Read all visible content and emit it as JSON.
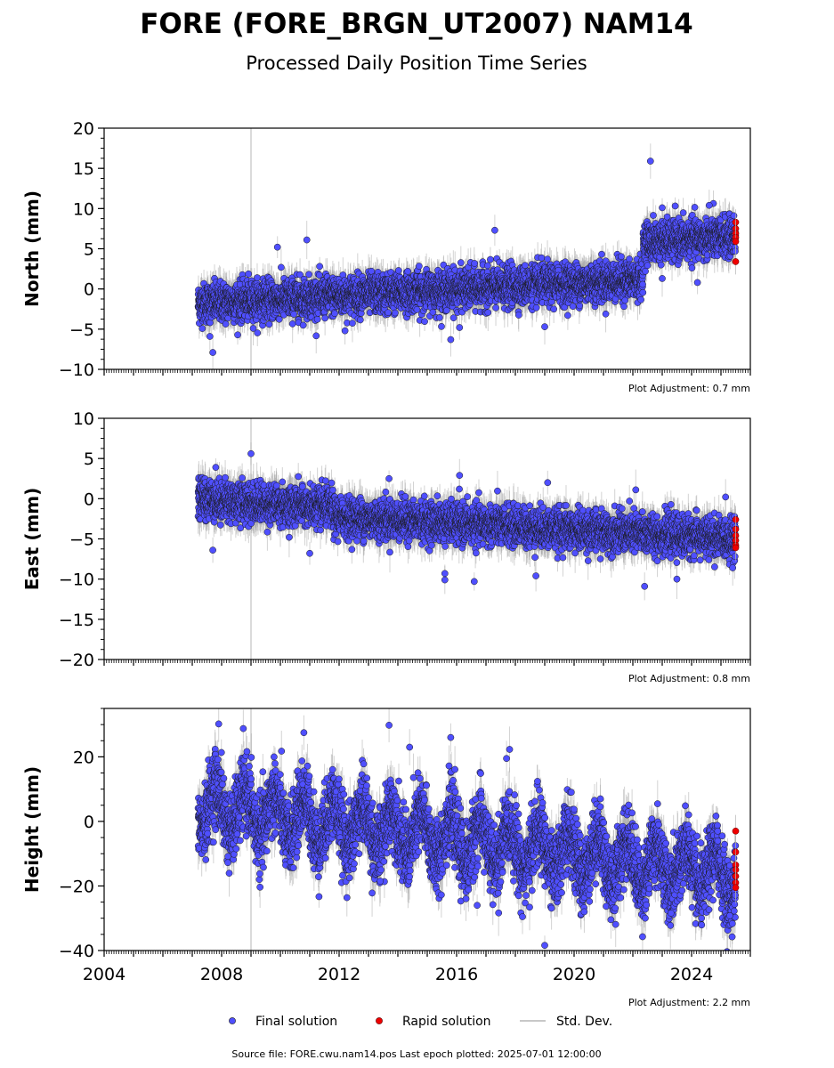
{
  "title": "FORE (FORE_BRGN_UT2007) NAM14",
  "subtitle": "Processed Daily Position Time Series",
  "legend": {
    "final": "Final solution",
    "rapid": "Rapid solution",
    "std": "Std. Dev."
  },
  "source": "Source file: FORE.cwu.nam14.pos  Last epoch plotted: 2025-07-01 12:00:00",
  "colors": {
    "final": "#4f4fff",
    "rapid": "#ee0000",
    "std": "#c8c8c8",
    "marker_edge": "#1a1a1a"
  },
  "chart_data": [
    {
      "type": "scatter",
      "ylabel": "North (mm)",
      "ylim": [
        -10,
        20
      ],
      "yticks": [
        "20",
        "15",
        "10",
        "5",
        "0",
        "−5",
        "−10"
      ],
      "xlim": [
        2004,
        2026
      ],
      "adjustment": "Plot Adjustment: 0.7 mm",
      "trend_segments": [
        {
          "x": [
            2007.2,
            2022.35
          ],
          "y": [
            -1.8,
            1.2
          ]
        },
        {
          "x": [
            2022.35,
            2025.5
          ],
          "y": [
            5.8,
            6.5
          ]
        }
      ],
      "final_outliers": [
        [
          2022.6,
          15.9
        ],
        [
          2017.3,
          7.3
        ],
        [
          2010.9,
          6.1
        ],
        [
          2009.9,
          5.2
        ],
        [
          2007.7,
          -7.9
        ],
        [
          2007.6,
          -5.9
        ],
        [
          2012.2,
          -5.2
        ],
        [
          2015.8,
          -6.3
        ],
        [
          2016.1,
          -4.8
        ],
        [
          2019.0,
          -4.7
        ],
        [
          2024.6,
          10.4
        ],
        [
          2023.0,
          10.1
        ],
        [
          2024.2,
          0.8
        ],
        [
          2023.0,
          1.3
        ]
      ],
      "rapid_points": [
        [
          2025.5,
          8.3
        ],
        [
          2025.5,
          7.5
        ],
        [
          2025.5,
          6.9
        ],
        [
          2025.5,
          6.4
        ],
        [
          2025.5,
          5.9
        ],
        [
          2025.5,
          3.4
        ]
      ]
    },
    {
      "type": "scatter",
      "ylabel": "East (mm)",
      "ylim": [
        -20,
        10
      ],
      "yticks": [
        "10",
        "5",
        "0",
        "−5",
        "−10",
        "−15",
        "−20"
      ],
      "xlim": [
        2004,
        2026
      ],
      "adjustment": "Plot Adjustment: 0.8 mm",
      "trend_segments": [
        {
          "x": [
            2007.2,
            2011.8
          ],
          "y": [
            0.0,
            -1.2
          ]
        },
        {
          "x": [
            2011.8,
            2025.5
          ],
          "y": [
            -2.2,
            -5.0
          ]
        }
      ],
      "final_outliers": [
        [
          2009.0,
          5.6
        ],
        [
          2007.8,
          3.9
        ],
        [
          2007.7,
          -6.4
        ],
        [
          2015.6,
          -10.1
        ],
        [
          2015.6,
          -9.3
        ],
        [
          2016.6,
          -10.3
        ],
        [
          2018.7,
          -9.6
        ],
        [
          2022.4,
          -10.9
        ],
        [
          2023.5,
          -10.0
        ],
        [
          2025.4,
          -8.6
        ],
        [
          2011.0,
          -6.8
        ],
        [
          2010.3,
          -4.8
        ],
        [
          2013.7,
          2.5
        ],
        [
          2019.1,
          2.0
        ],
        [
          2016.1,
          2.9
        ],
        [
          2022.1,
          1.1
        ]
      ],
      "rapid_points": [
        [
          2025.5,
          -2.6
        ],
        [
          2025.5,
          -3.8
        ],
        [
          2025.5,
          -4.6
        ],
        [
          2025.5,
          -5.2
        ],
        [
          2025.5,
          -5.8
        ],
        [
          2025.5,
          -6.1
        ]
      ]
    },
    {
      "type": "scatter",
      "ylabel": "Height (mm)",
      "ylim": [
        -40,
        35
      ],
      "yticks": [
        "20",
        "0",
        "−20",
        "−40"
      ],
      "xticks": [
        "2004",
        "2008",
        "2012",
        "2016",
        "2020",
        "2024"
      ],
      "xlim": [
        2004,
        2026
      ],
      "adjustment": "Plot Adjustment: 2.2 mm",
      "trend_segments": [
        {
          "x": [
            2007.2,
            2025.5
          ],
          "y": [
            5.0,
            -17.0
          ]
        }
      ],
      "final_outliers": [
        [
          2007.9,
          30.2
        ],
        [
          2010.8,
          27.5
        ],
        [
          2013.7,
          29.8
        ],
        [
          2015.8,
          26.0
        ],
        [
          2019.0,
          -38.4
        ],
        [
          2016.7,
          -26.0
        ],
        [
          2023.3,
          -28.4
        ],
        [
          2025.3,
          -29.2
        ],
        [
          2017.7,
          19.5
        ],
        [
          2014.4,
          23.0
        ],
        [
          2009.3,
          -16.2
        ],
        [
          2013.4,
          -18.5
        ]
      ],
      "rapid_points": [
        [
          2025.5,
          -3.0
        ],
        [
          2025.5,
          -9.5
        ],
        [
          2025.5,
          -13.5
        ],
        [
          2025.5,
          -15.0
        ],
        [
          2025.5,
          -17.0
        ],
        [
          2025.5,
          -19.0
        ],
        [
          2025.5,
          -20.5
        ]
      ]
    }
  ]
}
